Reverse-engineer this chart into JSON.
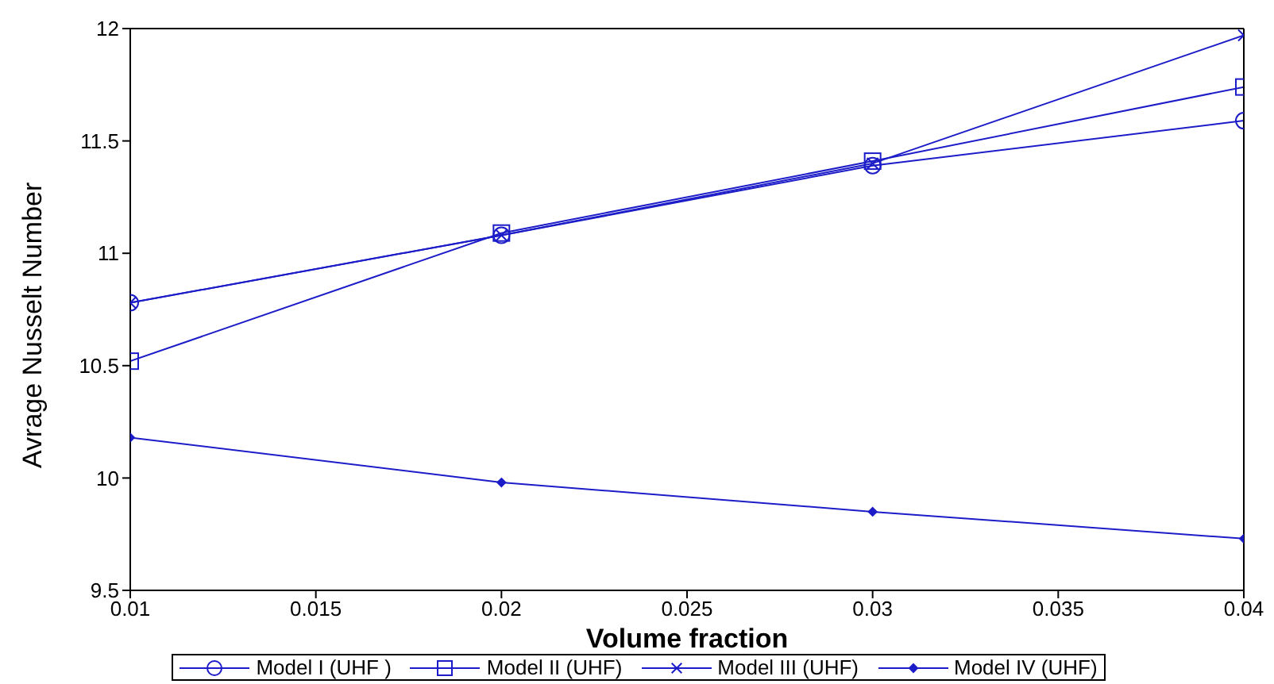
{
  "chart_data": {
    "type": "line",
    "xlabel": "Volume fraction",
    "ylabel": "Avrage Nusselt Number",
    "x": [
      0.01,
      0.02,
      0.03,
      0.04
    ],
    "series": [
      {
        "name": "Model I (UHF )",
        "color": "#1c1cc8",
        "marker": "circle",
        "values": [
          10.78,
          11.08,
          11.39,
          11.59
        ]
      },
      {
        "name": "Model II (UHF)",
        "color": "#1c1cc8",
        "marker": "square",
        "values": [
          10.52,
          11.09,
          11.41,
          11.74
        ]
      },
      {
        "name": "Model III (UHF)",
        "color": "#1c1cc8",
        "marker": "cross",
        "values": [
          10.78,
          11.08,
          11.4,
          11.97
        ]
      },
      {
        "name": "Model IV (UHF)",
        "color": "#1c1cc8",
        "marker": "diamond",
        "values": [
          10.18,
          9.98,
          9.85,
          9.73
        ]
      }
    ],
    "xlim": [
      0.01,
      0.04
    ],
    "xticks": [
      0.01,
      0.015,
      0.02,
      0.025,
      0.03,
      0.035,
      0.04
    ],
    "ylim": [
      9.5,
      12
    ],
    "yticks": [
      9.5,
      10,
      10.5,
      11,
      11.5,
      12
    ],
    "grid": false,
    "legend": "bottom",
    "line_style": "solid"
  }
}
